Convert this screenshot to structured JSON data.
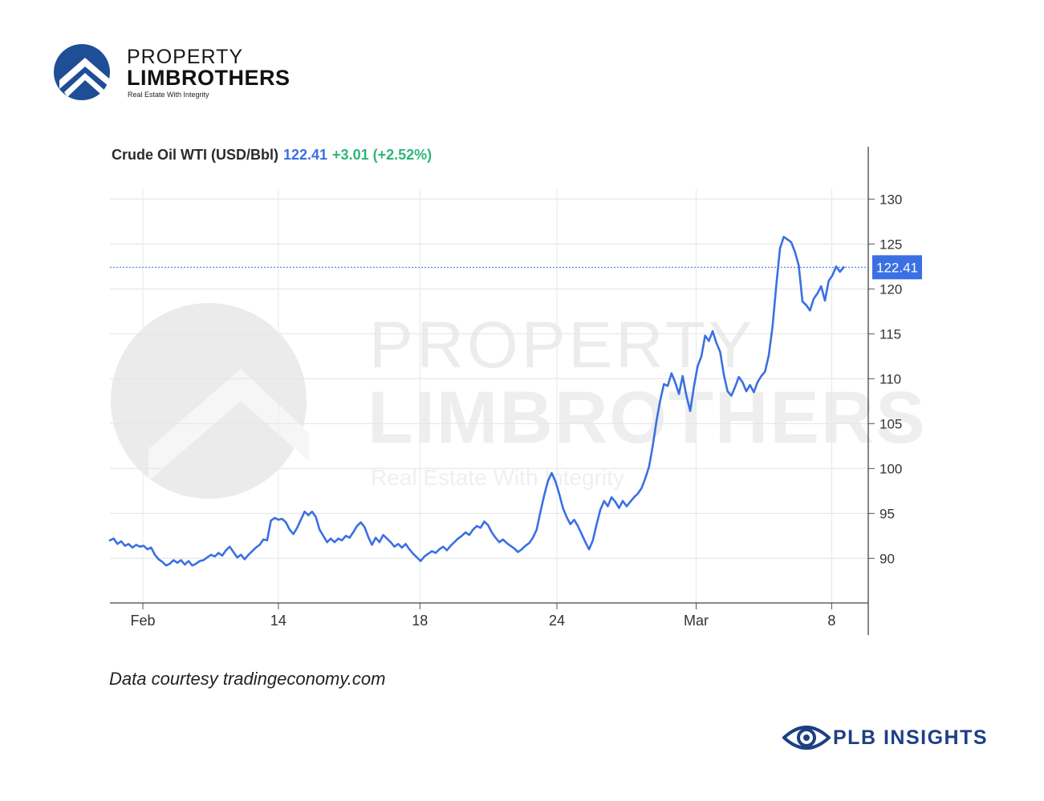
{
  "brand": {
    "name_top": "PROPERTY",
    "name_main": "LIMBROTHERS",
    "tagline": "Real Estate With Integrity"
  },
  "watermark": {
    "top": "PROPERTY",
    "main": "LIMBROTHERS",
    "tagline": "Real Estate With Integrity"
  },
  "header": {
    "name": "Crude Oil WTI (USD/Bbl)",
    "price": "122.41",
    "change": "+3.01 (+2.52%)"
  },
  "caption": "Data courtesy tradingeconomy.com",
  "footer_brand": "PLB INSIGHTS",
  "colors": {
    "line": "#3a70e3",
    "change": "#2fb67a",
    "brand": "#1d3f84",
    "grid": "#e6e6e6"
  },
  "chart_data": {
    "type": "line",
    "title": "Crude Oil WTI (USD/Bbl)",
    "last_value": 122.41,
    "last_label": "122.41",
    "ylim": [
      85.03,
      131.1
    ],
    "xlim": [
      0,
      100
    ],
    "y_ticks": [
      90,
      95,
      100,
      105,
      110,
      115,
      120,
      125,
      130
    ],
    "y_tick_labels": [
      "90",
      "95",
      "100",
      "105",
      "110",
      "115",
      "120",
      "125",
      "130"
    ],
    "x_ticks": [
      {
        "pos": 4.4,
        "label": "Feb"
      },
      {
        "pos": 22.5,
        "label": "14"
      },
      {
        "pos": 41.4,
        "label": "18"
      },
      {
        "pos": 59.7,
        "label": "24"
      },
      {
        "pos": 78.3,
        "label": "Mar"
      },
      {
        "pos": 96.4,
        "label": "8"
      }
    ],
    "grid": true,
    "series": [
      {
        "values": [
          [
            0.0,
            92.0
          ],
          [
            0.5,
            92.2
          ],
          [
            1.0,
            91.6
          ],
          [
            1.5,
            91.9
          ],
          [
            2.0,
            91.4
          ],
          [
            2.5,
            91.6
          ],
          [
            3.0,
            91.2
          ],
          [
            3.5,
            91.5
          ],
          [
            4.0,
            91.3
          ],
          [
            4.5,
            91.4
          ],
          [
            5.0,
            91.0
          ],
          [
            5.5,
            91.2
          ],
          [
            6.0,
            90.4
          ],
          [
            6.5,
            89.9
          ],
          [
            7.0,
            89.6
          ],
          [
            7.5,
            89.2
          ],
          [
            8.0,
            89.4
          ],
          [
            8.5,
            89.8
          ],
          [
            9.0,
            89.5
          ],
          [
            9.5,
            89.8
          ],
          [
            10.0,
            89.3
          ],
          [
            10.5,
            89.7
          ],
          [
            11.0,
            89.2
          ],
          [
            11.5,
            89.4
          ],
          [
            12.0,
            89.7
          ],
          [
            12.5,
            89.8
          ],
          [
            13.0,
            90.1
          ],
          [
            13.5,
            90.4
          ],
          [
            14.0,
            90.2
          ],
          [
            14.5,
            90.6
          ],
          [
            15.0,
            90.3
          ],
          [
            15.5,
            90.9
          ],
          [
            16.0,
            91.3
          ],
          [
            16.5,
            90.7
          ],
          [
            17.0,
            90.1
          ],
          [
            17.5,
            90.4
          ],
          [
            18.0,
            89.9
          ],
          [
            18.5,
            90.4
          ],
          [
            19.0,
            90.8
          ],
          [
            19.5,
            91.2
          ],
          [
            20.0,
            91.5
          ],
          [
            20.5,
            92.1
          ],
          [
            21.0,
            92.0
          ],
          [
            21.5,
            94.2
          ],
          [
            22.0,
            94.5
          ],
          [
            22.5,
            94.3
          ],
          [
            23.0,
            94.4
          ],
          [
            23.5,
            94.0
          ],
          [
            24.0,
            93.2
          ],
          [
            24.5,
            92.7
          ],
          [
            25.0,
            93.4
          ],
          [
            25.5,
            94.3
          ],
          [
            26.0,
            95.2
          ],
          [
            26.5,
            94.8
          ],
          [
            27.0,
            95.2
          ],
          [
            27.5,
            94.6
          ],
          [
            28.0,
            93.2
          ],
          [
            28.5,
            92.5
          ],
          [
            29.0,
            91.8
          ],
          [
            29.5,
            92.2
          ],
          [
            30.0,
            91.8
          ],
          [
            30.5,
            92.2
          ],
          [
            31.0,
            92.0
          ],
          [
            31.5,
            92.5
          ],
          [
            32.0,
            92.3
          ],
          [
            32.5,
            92.9
          ],
          [
            33.0,
            93.6
          ],
          [
            33.5,
            94.0
          ],
          [
            34.0,
            93.5
          ],
          [
            34.5,
            92.4
          ],
          [
            35.0,
            91.5
          ],
          [
            35.5,
            92.3
          ],
          [
            36.0,
            91.8
          ],
          [
            36.5,
            92.6
          ],
          [
            37.0,
            92.2
          ],
          [
            37.5,
            91.8
          ],
          [
            38.0,
            91.3
          ],
          [
            38.5,
            91.6
          ],
          [
            39.0,
            91.2
          ],
          [
            39.5,
            91.6
          ],
          [
            40.0,
            91.0
          ],
          [
            40.5,
            90.5
          ],
          [
            41.0,
            90.1
          ],
          [
            41.5,
            89.7
          ],
          [
            42.0,
            90.2
          ],
          [
            42.5,
            90.5
          ],
          [
            43.0,
            90.8
          ],
          [
            43.5,
            90.6
          ],
          [
            44.0,
            91.0
          ],
          [
            44.5,
            91.3
          ],
          [
            45.0,
            90.9
          ],
          [
            45.5,
            91.4
          ],
          [
            46.0,
            91.8
          ],
          [
            46.5,
            92.2
          ],
          [
            47.0,
            92.5
          ],
          [
            47.5,
            92.9
          ],
          [
            48.0,
            92.6
          ],
          [
            48.5,
            93.2
          ],
          [
            49.0,
            93.6
          ],
          [
            49.5,
            93.4
          ],
          [
            50.0,
            94.1
          ],
          [
            50.5,
            93.7
          ],
          [
            51.0,
            92.9
          ],
          [
            51.5,
            92.3
          ],
          [
            52.0,
            91.8
          ],
          [
            52.5,
            92.1
          ],
          [
            53.0,
            91.7
          ],
          [
            53.5,
            91.4
          ],
          [
            54.0,
            91.1
          ],
          [
            54.5,
            90.7
          ],
          [
            55.0,
            91.0
          ],
          [
            55.5,
            91.4
          ],
          [
            56.0,
            91.7
          ],
          [
            56.5,
            92.3
          ],
          [
            57.0,
            93.2
          ],
          [
            57.5,
            95.2
          ],
          [
            58.0,
            97.0
          ],
          [
            58.5,
            98.6
          ],
          [
            59.0,
            99.5
          ],
          [
            59.5,
            98.6
          ],
          [
            60.0,
            97.2
          ],
          [
            60.5,
            95.6
          ],
          [
            61.0,
            94.6
          ],
          [
            61.5,
            93.8
          ],
          [
            62.0,
            94.3
          ],
          [
            62.5,
            93.6
          ],
          [
            63.0,
            92.7
          ],
          [
            63.5,
            91.8
          ],
          [
            64.0,
            91.0
          ],
          [
            64.5,
            92.0
          ],
          [
            65.0,
            93.8
          ],
          [
            65.5,
            95.4
          ],
          [
            66.0,
            96.4
          ],
          [
            66.5,
            95.8
          ],
          [
            67.0,
            96.8
          ],
          [
            67.5,
            96.3
          ],
          [
            68.0,
            95.6
          ],
          [
            68.5,
            96.4
          ],
          [
            69.0,
            95.8
          ],
          [
            69.5,
            96.3
          ],
          [
            70.0,
            96.8
          ],
          [
            70.5,
            97.2
          ],
          [
            71.0,
            97.8
          ],
          [
            71.5,
            98.9
          ],
          [
            72.0,
            100.2
          ],
          [
            72.5,
            102.5
          ],
          [
            73.0,
            105.3
          ],
          [
            73.5,
            107.6
          ],
          [
            74.0,
            109.4
          ],
          [
            74.5,
            109.2
          ],
          [
            75.0,
            110.6
          ],
          [
            75.5,
            109.6
          ],
          [
            76.0,
            108.3
          ],
          [
            76.5,
            110.3
          ],
          [
            77.0,
            108.1
          ],
          [
            77.5,
            106.4
          ],
          [
            78.0,
            109.1
          ],
          [
            78.5,
            111.4
          ],
          [
            79.0,
            112.5
          ],
          [
            79.5,
            114.8
          ],
          [
            80.0,
            114.2
          ],
          [
            80.5,
            115.3
          ],
          [
            81.0,
            114.0
          ],
          [
            81.5,
            113.0
          ],
          [
            82.0,
            110.4
          ],
          [
            82.5,
            108.6
          ],
          [
            83.0,
            108.1
          ],
          [
            83.5,
            109.1
          ],
          [
            84.0,
            110.2
          ],
          [
            84.5,
            109.6
          ],
          [
            85.0,
            108.6
          ],
          [
            85.5,
            109.3
          ],
          [
            86.0,
            108.5
          ],
          [
            86.5,
            109.6
          ],
          [
            87.0,
            110.3
          ],
          [
            87.5,
            110.8
          ],
          [
            88.0,
            112.6
          ],
          [
            88.5,
            115.8
          ],
          [
            89.0,
            120.4
          ],
          [
            89.5,
            124.5
          ],
          [
            90.0,
            125.8
          ],
          [
            90.5,
            125.5
          ],
          [
            91.0,
            125.2
          ],
          [
            91.5,
            124.1
          ],
          [
            92.0,
            122.6
          ],
          [
            92.5,
            118.6
          ],
          [
            93.0,
            118.2
          ],
          [
            93.5,
            117.6
          ],
          [
            94.0,
            118.9
          ],
          [
            94.5,
            119.5
          ],
          [
            95.0,
            120.3
          ],
          [
            95.5,
            118.7
          ],
          [
            96.0,
            120.9
          ],
          [
            96.5,
            121.5
          ],
          [
            97.0,
            122.5
          ],
          [
            97.5,
            121.9
          ],
          [
            98.0,
            122.41
          ]
        ]
      }
    ]
  }
}
